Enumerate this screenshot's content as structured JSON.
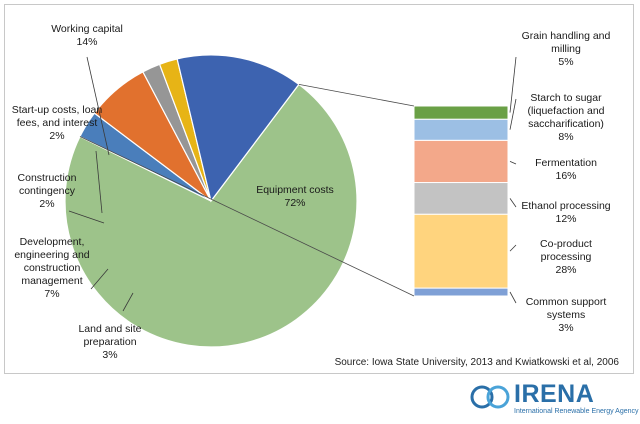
{
  "chart_data": [
    {
      "type": "pie",
      "slices": [
        {
          "label": [
            "Equipment costs",
            "72%"
          ],
          "value": 72,
          "color": "#9dc38a"
        },
        {
          "label": [
            "Land and site",
            "preparation",
            "3%"
          ],
          "value": 3,
          "color": "#4a7ebb"
        },
        {
          "label": [
            "Development,",
            "engineering and",
            "construction",
            "management",
            "7%"
          ],
          "value": 7,
          "color": "#e1712e"
        },
        {
          "label": [
            "Construction",
            "contingency",
            "2%"
          ],
          "value": 2,
          "color": "#969696"
        },
        {
          "label": [
            "Start-up  costs, loan",
            "fees, and interest",
            "2%"
          ],
          "value": 2,
          "color": "#e7b416"
        },
        {
          "label": [
            "Working capital",
            "14%"
          ],
          "value": 14,
          "color": "#3d63b0"
        }
      ]
    },
    {
      "type": "bar",
      "stacked": true,
      "series": [
        {
          "label": [
            "Common support",
            "systems",
            "3%"
          ],
          "value": 3,
          "color": "#7fa0d6"
        },
        {
          "label": [
            "Co-product",
            "processing",
            "28%"
          ],
          "value": 28,
          "color": "#ffd47e"
        },
        {
          "label": [
            "Ethanol processing",
            "12%"
          ],
          "value": 12,
          "color": "#c3c3c3"
        },
        {
          "label": [
            "Fermentation",
            "16%"
          ],
          "value": 16,
          "color": "#f3a88a"
        },
        {
          "label": [
            "Starch to sugar",
            "(liquefaction and",
            "saccharification)",
            "8%"
          ],
          "value": 8,
          "color": "#9cbfe4"
        },
        {
          "label": [
            "Grain handling and",
            "milling",
            "5%"
          ],
          "value": 5,
          "color": "#6aa046"
        }
      ]
    }
  ],
  "source": "Source: Iowa State University, 2013 and Kwiatkowski et al, 2006",
  "logo": {
    "name": "IRENA",
    "subtitle": "International Renewable Energy Agency",
    "color": "#2a6fa8"
  }
}
